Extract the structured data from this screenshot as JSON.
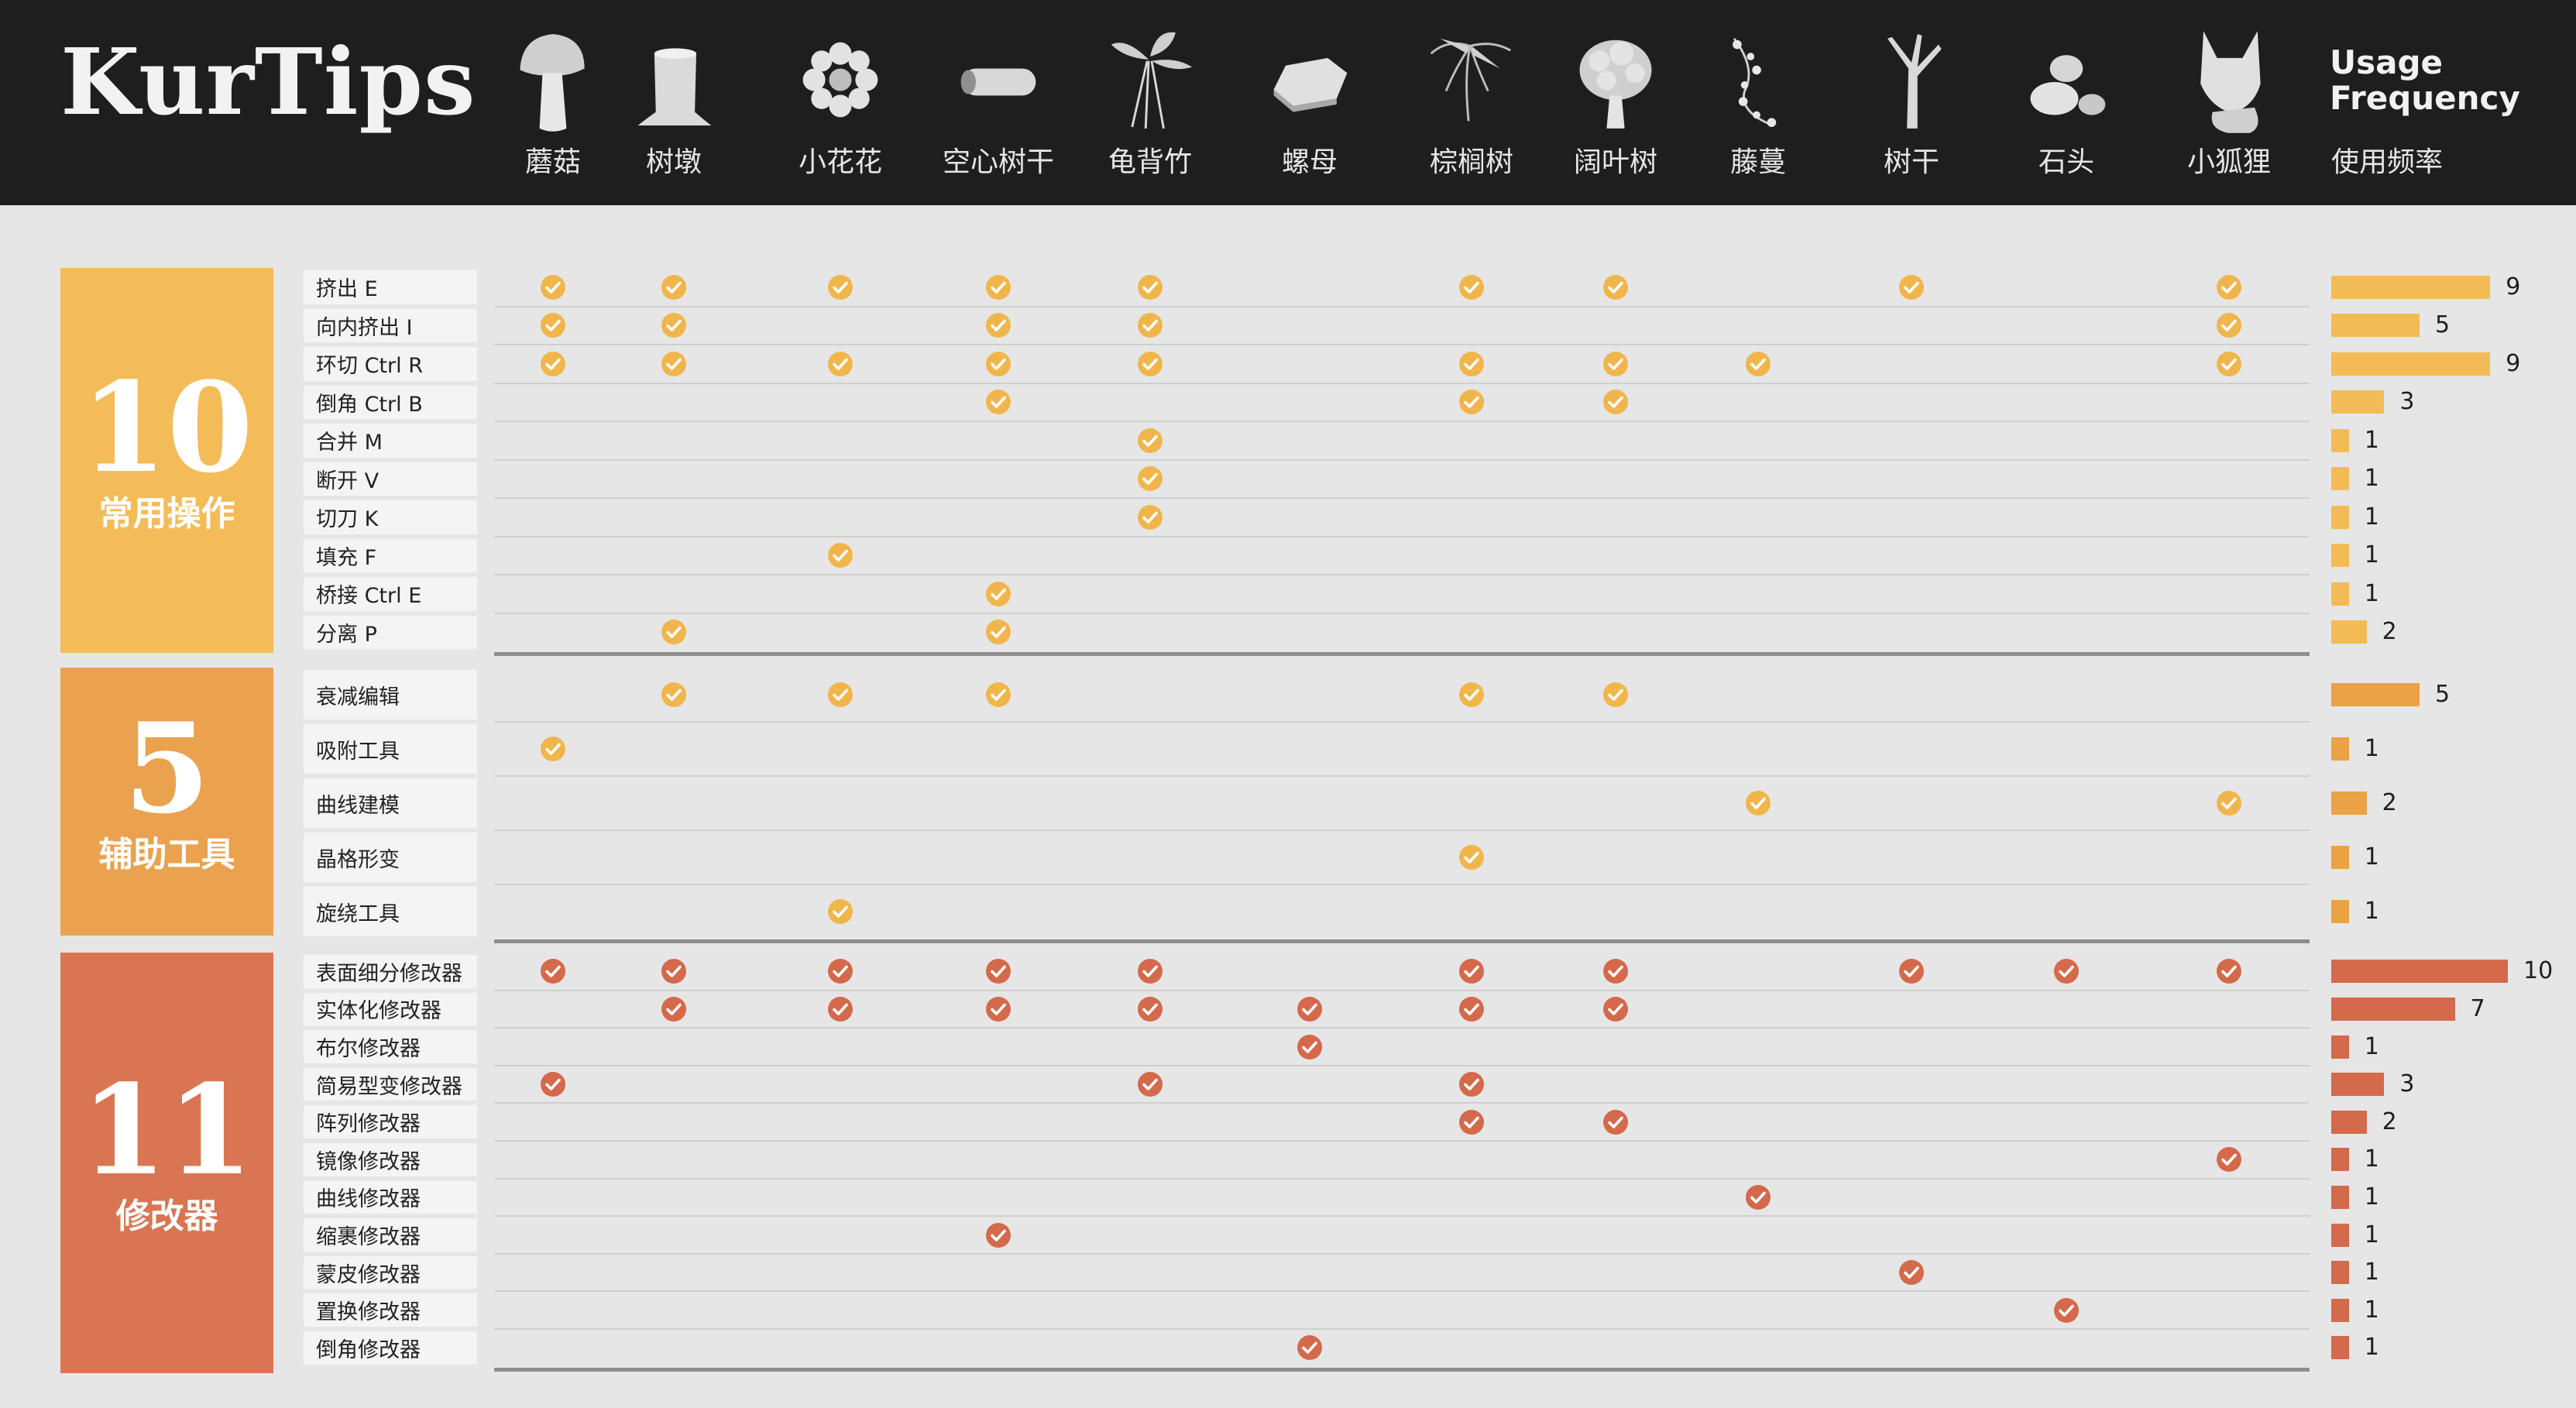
{
  "header": {
    "brand": "KurTips",
    "usage_title_line1": "Usage",
    "usage_title_line2": "Frequency",
    "usage_subtitle": "使用频率"
  },
  "models": [
    {
      "label": "蘑菇",
      "icon": "mushroom-icon"
    },
    {
      "label": "树墩",
      "icon": "tree-stump-icon"
    },
    {
      "label": "小花花",
      "icon": "flower-icon"
    },
    {
      "label": "空心树干",
      "icon": "hollow-trunk-icon"
    },
    {
      "label": "龟背竹",
      "icon": "monstera-icon"
    },
    {
      "label": "螺母",
      "icon": "nut-icon"
    },
    {
      "label": "棕榈树",
      "icon": "palm-tree-icon"
    },
    {
      "label": "阔叶树",
      "icon": "broadleaf-tree-icon"
    },
    {
      "label": "藤蔓",
      "icon": "vine-icon"
    },
    {
      "label": "树干",
      "icon": "tree-trunk-icon"
    },
    {
      "label": "石头",
      "icon": "stone-icon"
    },
    {
      "label": "小狐狸",
      "icon": "fox-icon"
    }
  ],
  "categories": [
    {
      "count": "10",
      "label": "常用操作",
      "color": "#f3bc58"
    },
    {
      "count": "5",
      "label": "辅助工具",
      "color": "#eaa24e"
    },
    {
      "count": "11",
      "label": "修改器",
      "color": "#d97552"
    }
  ],
  "check_colors": [
    "#f0b64c",
    "#f0b64c",
    "#d4694b"
  ],
  "bar_colors": [
    "#f3bb55",
    "#eba244",
    "#d4694b"
  ],
  "chart_data": {
    "type": "table",
    "title": "KurTips",
    "columns": [
      "蘑菇",
      "树墩",
      "小花花",
      "空心树干",
      "龟背竹",
      "螺母",
      "棕榈树",
      "阔叶树",
      "藤蔓",
      "树干",
      "石头",
      "小狐狸"
    ],
    "groups": [
      {
        "name": "常用操作",
        "rows": [
          {
            "label": "挤出 E",
            "usage": 9,
            "models": [
              0,
              1,
              2,
              3,
              4,
              6,
              7,
              9,
              11
            ]
          },
          {
            "label": "向内挤出 I",
            "usage": 5,
            "models": [
              0,
              1,
              3,
              4,
              11
            ]
          },
          {
            "label": "环切 Ctrl R",
            "usage": 9,
            "models": [
              0,
              1,
              2,
              3,
              4,
              6,
              7,
              8,
              11
            ]
          },
          {
            "label": "倒角 Ctrl B",
            "usage": 3,
            "models": [
              3,
              6,
              7
            ]
          },
          {
            "label": "合并 M",
            "usage": 1,
            "models": [
              4
            ]
          },
          {
            "label": "断开 V",
            "usage": 1,
            "models": [
              4
            ]
          },
          {
            "label": "切刀 K",
            "usage": 1,
            "models": [
              4
            ]
          },
          {
            "label": "填充 F",
            "usage": 1,
            "models": [
              2
            ]
          },
          {
            "label": "桥接 Ctrl E",
            "usage": 1,
            "models": [
              3
            ]
          },
          {
            "label": "分离 P",
            "usage": 2,
            "models": [
              1,
              3
            ]
          }
        ]
      },
      {
        "name": "辅助工具",
        "rows": [
          {
            "label": "衰减编辑",
            "usage": 5,
            "models": [
              1,
              2,
              3,
              6,
              7
            ]
          },
          {
            "label": "吸附工具",
            "usage": 1,
            "models": [
              0
            ]
          },
          {
            "label": "曲线建模",
            "usage": 2,
            "models": [
              8,
              11
            ]
          },
          {
            "label": "晶格形变",
            "usage": 1,
            "models": [
              6
            ]
          },
          {
            "label": "旋绕工具",
            "usage": 1,
            "models": [
              2
            ]
          }
        ]
      },
      {
        "name": "修改器",
        "rows": [
          {
            "label": "表面细分修改器",
            "usage": 10,
            "models": [
              0,
              1,
              2,
              3,
              4,
              6,
              7,
              9,
              10,
              11
            ]
          },
          {
            "label": "实体化修改器",
            "usage": 7,
            "models": [
              1,
              2,
              3,
              4,
              5,
              6,
              7
            ]
          },
          {
            "label": "布尔修改器",
            "usage": 1,
            "models": [
              5
            ]
          },
          {
            "label": "简易型变修改器",
            "usage": 3,
            "models": [
              0,
              4,
              6
            ]
          },
          {
            "label": "阵列修改器",
            "usage": 2,
            "models": [
              6,
              7
            ]
          },
          {
            "label": "镜像修改器",
            "usage": 1,
            "models": [
              11
            ]
          },
          {
            "label": "曲线修改器",
            "usage": 1,
            "models": [
              8
            ]
          },
          {
            "label": "缩裹修改器",
            "usage": 1,
            "models": [
              3
            ]
          },
          {
            "label": "蒙皮修改器",
            "usage": 1,
            "models": [
              9
            ]
          },
          {
            "label": "置换修改器",
            "usage": 1,
            "models": [
              10
            ]
          },
          {
            "label": "倒角修改器",
            "usage": 1,
            "models": [
              5
            ]
          }
        ]
      }
    ],
    "usage_range": [
      0,
      10
    ]
  }
}
